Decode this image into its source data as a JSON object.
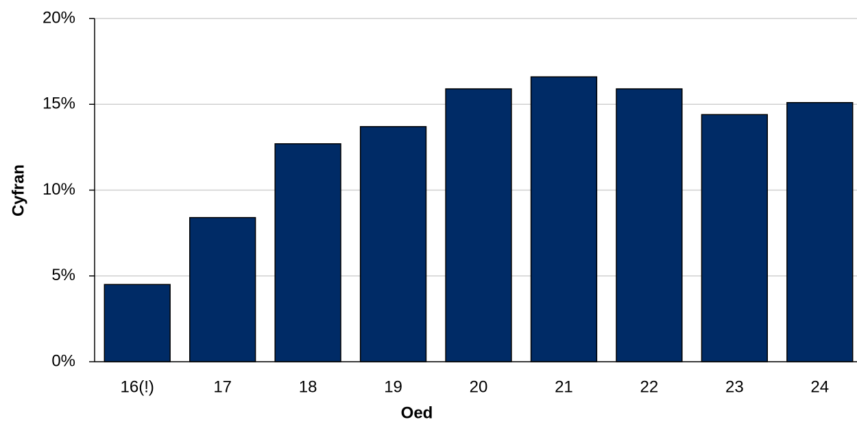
{
  "chart_data": {
    "type": "bar",
    "x_label": "Oed",
    "y_label": "Cyfran",
    "categories": [
      "16(!)",
      "17",
      "18",
      "19",
      "20",
      "21",
      "22",
      "23",
      "24"
    ],
    "values": [
      4.5,
      8.4,
      12.7,
      13.7,
      15.9,
      16.6,
      15.9,
      14.4,
      15.1
    ],
    "color": "#002b66",
    "ylim": [
      0,
      20
    ],
    "yticks": [
      {
        "value": 0,
        "label": "0%"
      },
      {
        "value": 5,
        "label": "5%"
      },
      {
        "value": 10,
        "label": "10%"
      },
      {
        "value": 15,
        "label": "15%"
      },
      {
        "value": 20,
        "label": "20%"
      }
    ],
    "grid": true
  }
}
